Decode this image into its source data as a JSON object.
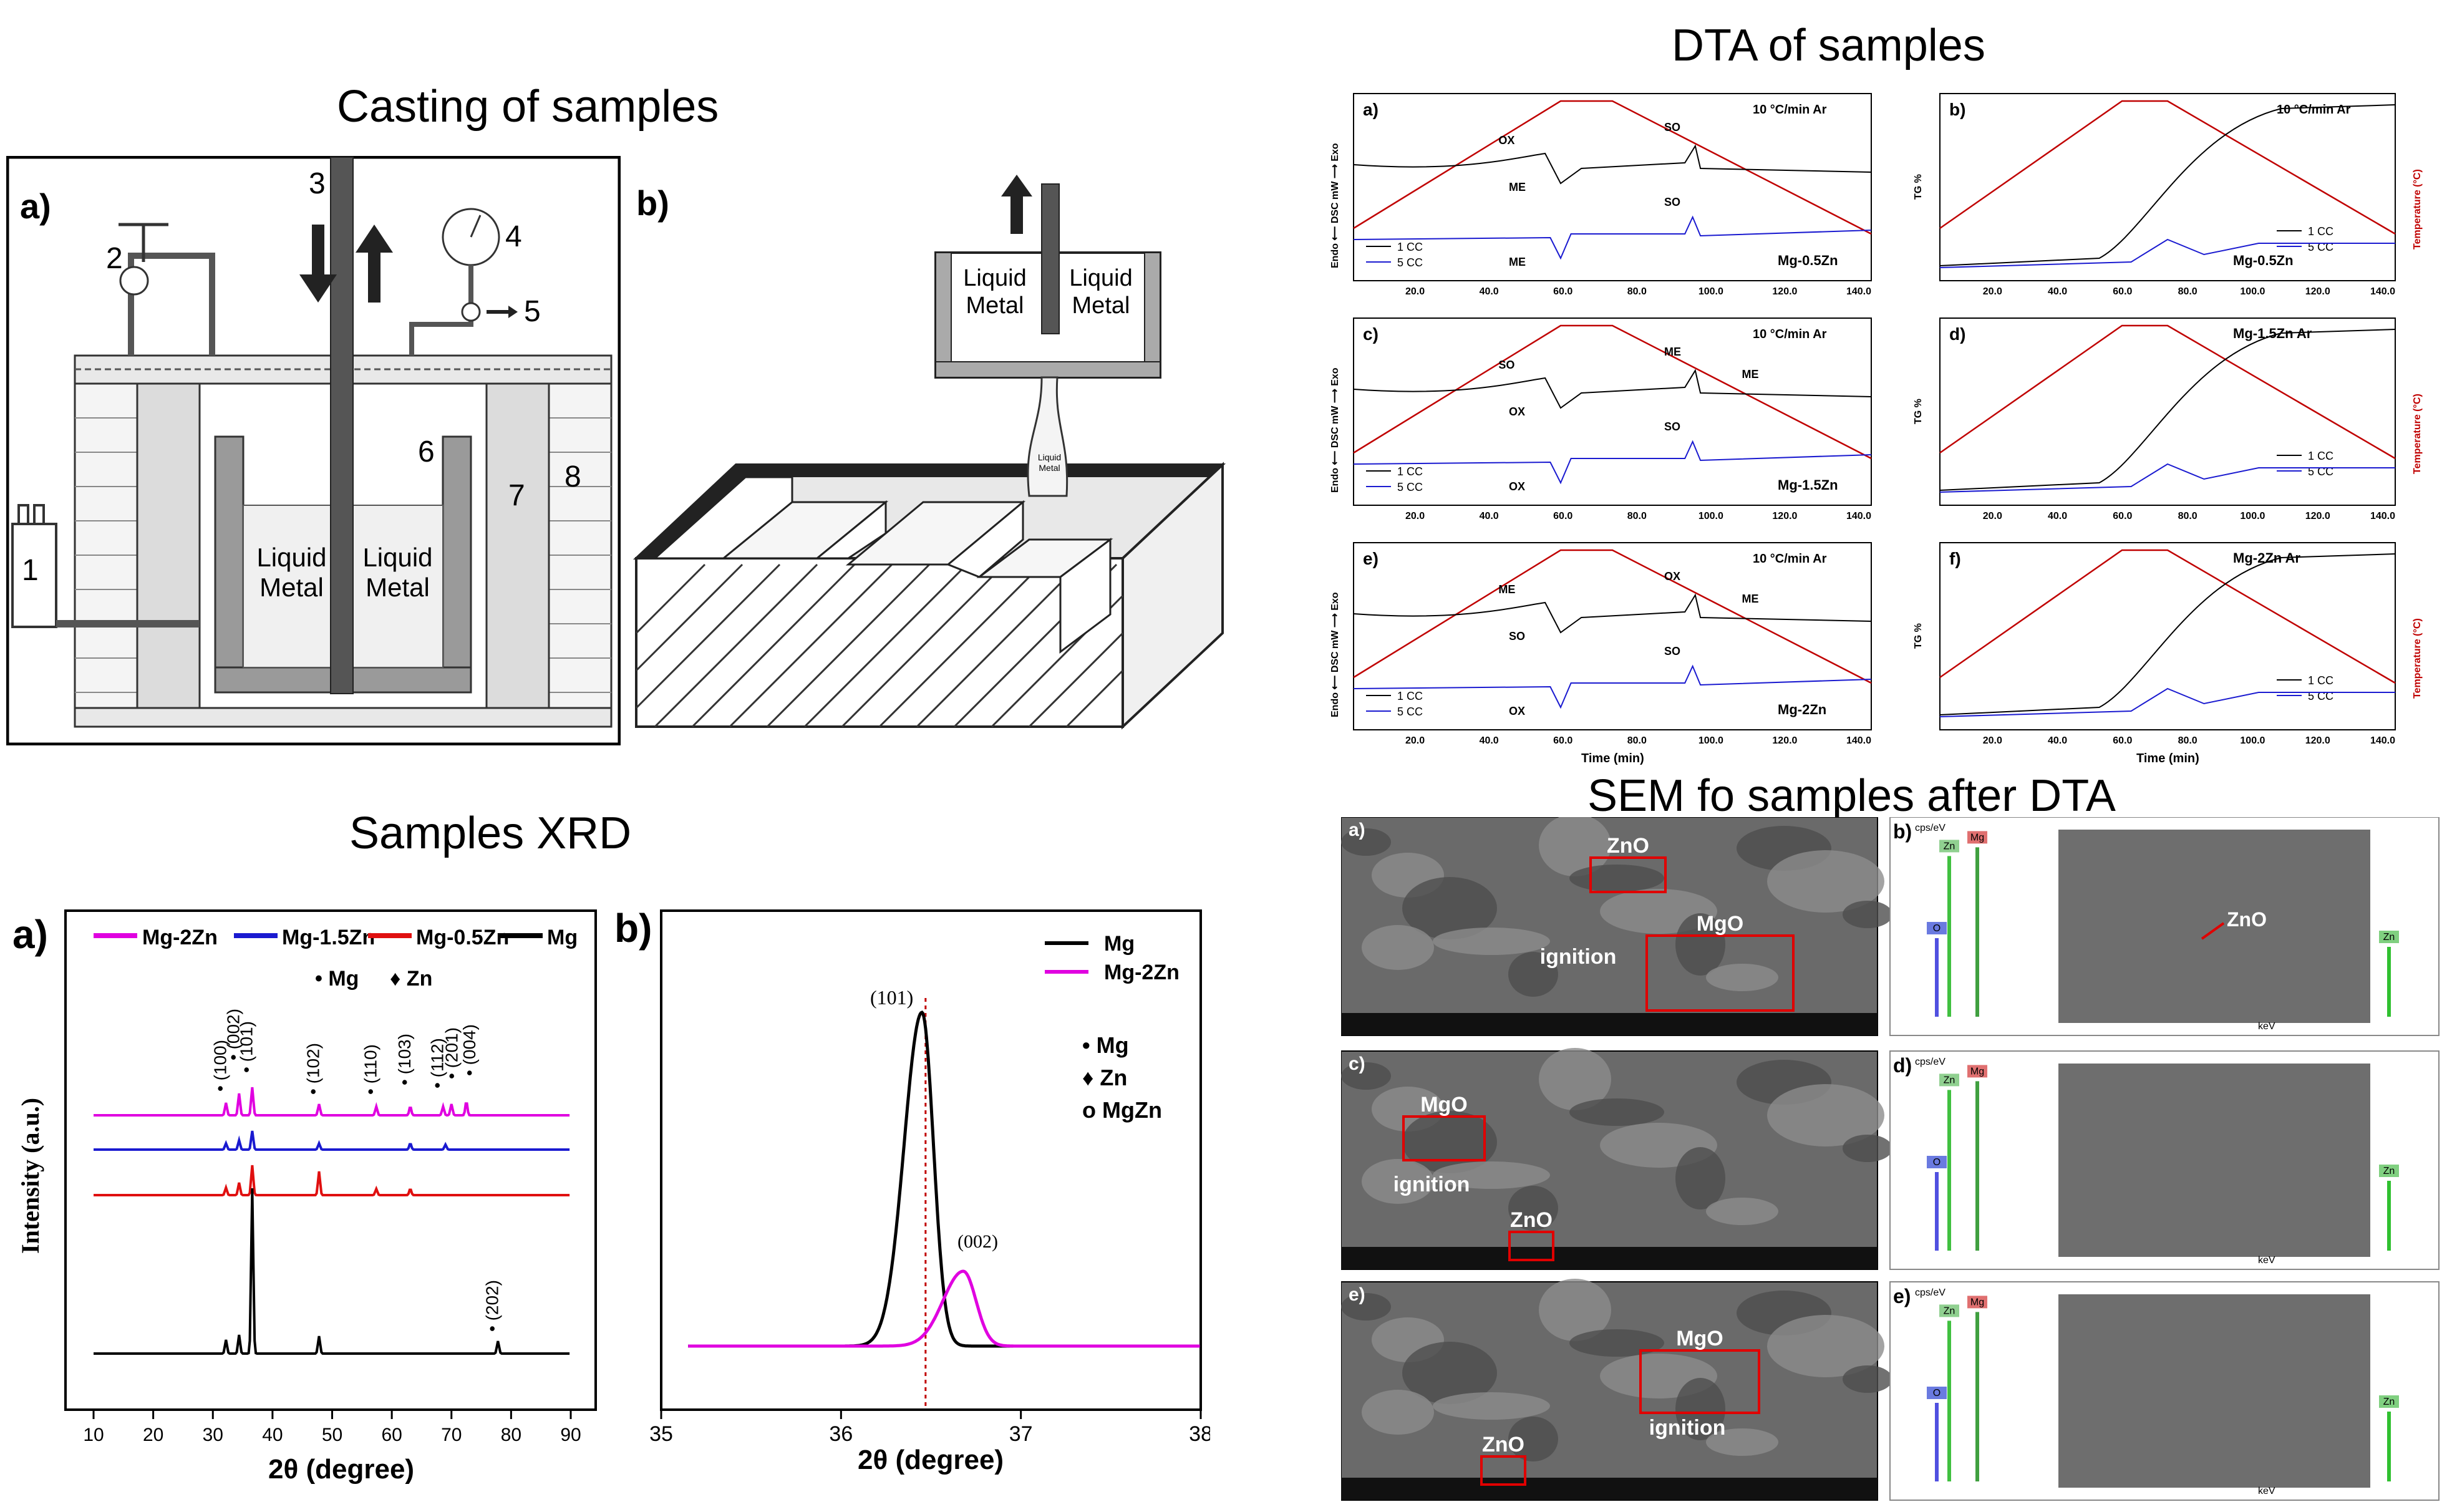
{
  "titles": {
    "casting": "Casting of samples",
    "dta": "DTA of samples",
    "xrd": "Samples XRD",
    "sem": "SEM fo samples after DTA"
  },
  "casting": {
    "panel_a": {
      "label": "a)",
      "numbers": [
        "1",
        "2",
        "3",
        "4",
        "5",
        "6",
        "7",
        "8"
      ],
      "liquid_left": "Liquid Metal",
      "liquid_right": "Liquid Metal"
    },
    "panel_b": {
      "label": "b)",
      "liquid_left": "Liquid Metal",
      "liquid_right": "Liquid Metal",
      "stream_label": "Liquid Metal"
    }
  },
  "dta": {
    "time_label": "Time (min)",
    "panels": [
      {
        "label": "a)",
        "rate": "10 °C/min Ar",
        "alloy": "Mg-0.5Zn",
        "legend": [
          "1 CC",
          "5 CC"
        ],
        "marks": [
          "OX",
          "ME",
          "SO",
          "SO",
          "ME"
        ]
      },
      {
        "label": "b)",
        "rate": "10 °C/min Ar",
        "alloy": "Mg-0.5Zn",
        "legend": [
          "1 CC",
          "5 CC"
        ]
      },
      {
        "label": "c)",
        "rate": "10 °C/min Ar",
        "alloy": "Mg-1.5Zn",
        "legend": [
          "1 CC",
          "5 CC"
        ],
        "marks": [
          "SO",
          "OX",
          "ME",
          "SO",
          "OX",
          "ME"
        ]
      },
      {
        "label": "d)",
        "rate": "",
        "alloy": "Mg-1.5Zn Ar",
        "legend": [
          "1 CC",
          "5 CC"
        ]
      },
      {
        "label": "e)",
        "rate": "10 °C/min Ar",
        "alloy": "Mg-2Zn",
        "legend": [
          "1 CC",
          "5 CC"
        ],
        "marks": [
          "ME",
          "SO",
          "OX",
          "SO",
          "OX",
          "ME"
        ]
      },
      {
        "label": "f)",
        "rate": "",
        "alloy": "Mg-2Zn Ar",
        "legend": [
          "1 CC",
          "5 CC"
        ]
      }
    ],
    "ylabel_dsc": "Endo ⟵ DSC mW ⟶ Exo",
    "ylabel_tg": "TG %",
    "ylabel_temp": "Temperature (°C)"
  },
  "xrd": {
    "panel_a": {
      "label": "a)",
      "legend": [
        "Mg-2Zn",
        "Mg-1.5Zn",
        "Mg-0.5Zn",
        "Mg"
      ],
      "markers": [
        "• Mg",
        "♦ Zn"
      ],
      "peaks": [
        "(100)",
        "(002)",
        "(101)",
        "(102)",
        "(110)",
        "(103)",
        "(112)",
        "(201)",
        "(004)",
        "(202)"
      ],
      "ylabel": "Intensity (a.u.)",
      "xlabel": "2θ (degree)",
      "xticks": [
        "10",
        "20",
        "30",
        "40",
        "50",
        "60",
        "70",
        "80",
        "90"
      ]
    },
    "panel_b": {
      "label": "b)",
      "legend": [
        "Mg",
        "Mg-2Zn"
      ],
      "markers": [
        "• Mg",
        "♦ Zn",
        "o MgZn"
      ],
      "peaks": [
        "(101)",
        "(002)"
      ],
      "xlabel": "2θ (degree)",
      "xticks": [
        "35",
        "36",
        "37",
        "38"
      ]
    }
  },
  "sem": {
    "panels": [
      {
        "label": "a)",
        "boxes": [
          "ZnO",
          "MgO"
        ],
        "extra": "ignition"
      },
      {
        "label": "c)",
        "boxes": [
          "MgO",
          "ZnO"
        ],
        "extra": "ignition"
      },
      {
        "label": "e)",
        "boxes": [
          "MgO",
          "ZnO"
        ],
        "extra": "ignition"
      }
    ],
    "eds": [
      {
        "label": "b)",
        "elements": [
          "O",
          "Zn",
          "Mg",
          "Zn"
        ]
      },
      {
        "label": "d)",
        "elements": [
          "O",
          "Zn",
          "Mg",
          "Zn"
        ]
      },
      {
        "label": "e)",
        "elements": [
          "O",
          "Zn",
          "Mg",
          "Zn"
        ]
      }
    ],
    "znO_label": "ZnO",
    "eds_unit": "cps/eV",
    "kev": "keV"
  },
  "chart_data": [
    {
      "type": "line",
      "title": "",
      "xlabel": "2θ (degree)",
      "ylabel": "Intensity (a.u.)",
      "xlim": [
        10,
        90
      ],
      "series": [
        {
          "name": "Mg-2Zn",
          "color": "#e000e0",
          "peaks_x": [
            32.2,
            34.4,
            36.6,
            47.8,
            57.4,
            63.1,
            68.6,
            70.0,
            72.5
          ]
        },
        {
          "name": "Mg-1.5Zn",
          "color": "#1a1ad0",
          "peaks_x": [
            32.2,
            34.4,
            36.6,
            47.8,
            63.1,
            69.0
          ]
        },
        {
          "name": "Mg-0.5Zn",
          "color": "#e01010",
          "peaks_x": [
            32.2,
            34.4,
            36.6,
            47.8,
            57.4,
            63.1
          ]
        },
        {
          "name": "Mg",
          "color": "#000000",
          "peaks_x": [
            32.2,
            34.4,
            36.6,
            47.8,
            77.8
          ]
        }
      ]
    },
    {
      "type": "line",
      "title": "",
      "xlabel": "2θ (degree)",
      "xlim": [
        35,
        38
      ],
      "series": [
        {
          "name": "Mg",
          "color": "#000000",
          "peak_x": 36.45
        },
        {
          "name": "Mg-2Zn",
          "color": "#e000e0",
          "peak_x": 36.68
        }
      ]
    }
  ]
}
